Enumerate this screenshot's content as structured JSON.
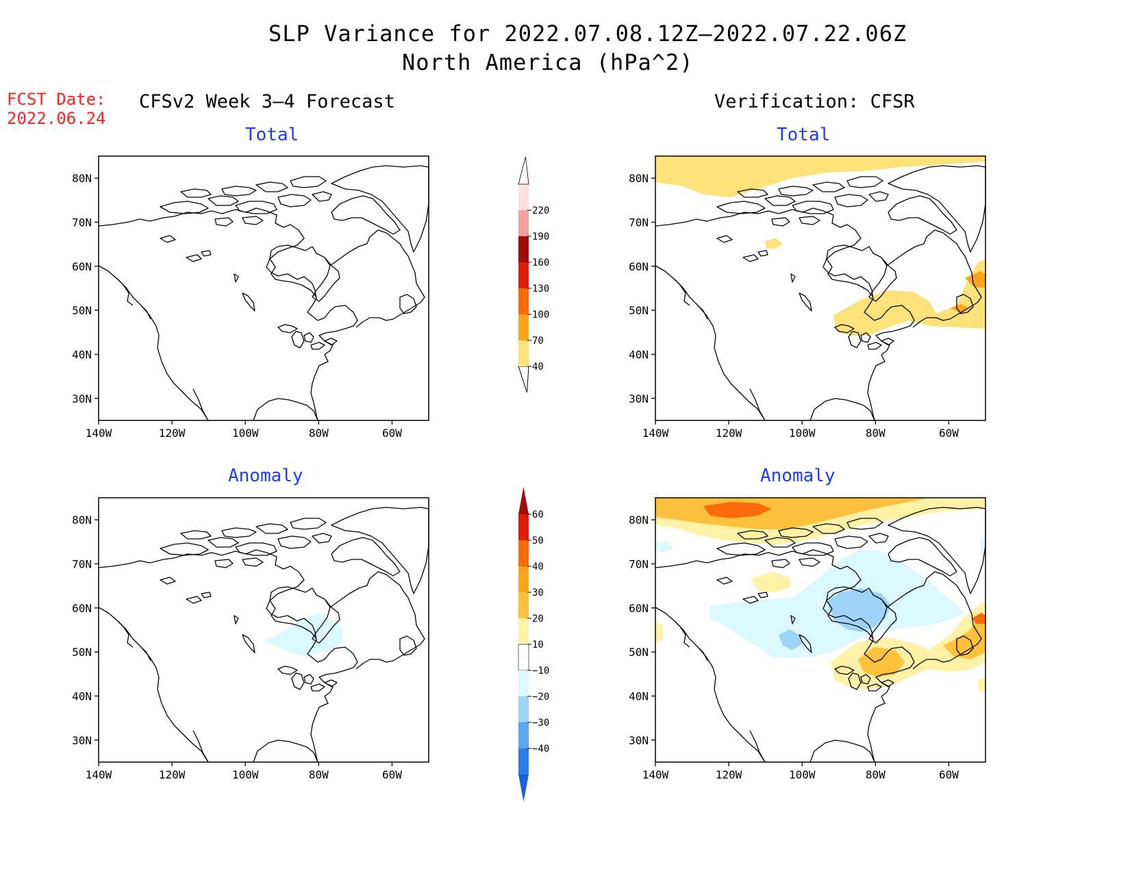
{
  "header": {
    "title_line1": "SLP Variance for 2022.07.08.12Z–2022.07.22.06Z",
    "title_line2": "North America (hPa^2)"
  },
  "fcst": {
    "label": "FCST Date:",
    "date": "2022.06.24"
  },
  "columns": {
    "left": "CFSv2 Week 3–4 Forecast",
    "right": "Verification: CFSR"
  },
  "panels": {
    "top_left": "Total",
    "top_right": "Total",
    "bottom_left": "Anomaly",
    "bottom_right": "Anomaly"
  },
  "axes": {
    "lat_labels": [
      "80N",
      "70N",
      "60N",
      "50N",
      "40N",
      "30N"
    ],
    "lon_labels": [
      "140W",
      "120W",
      "100W",
      "80W",
      "60W"
    ],
    "lat_range": [
      25,
      85
    ],
    "lon_range": [
      -140,
      -50
    ]
  },
  "colorbars": {
    "total": {
      "levels": [
        "40",
        "70",
        "100",
        "130",
        "160",
        "190",
        "220"
      ],
      "colors": [
        "#fde27a",
        "#fba51c",
        "#fd6a0b",
        "#e21c0a",
        "#a00c08",
        "#f2a0a0",
        "#fde0e0"
      ]
    },
    "anomaly": {
      "levels": [
        "60",
        "50",
        "40",
        "30",
        "20",
        "10",
        "−10",
        "−20",
        "−30",
        "−40"
      ],
      "colors_top_down": [
        "#a00c08",
        "#e21c0a",
        "#fd6a0b",
        "#fba51c",
        "#fdc13b",
        "#fff2a6",
        "#ffffff",
        "#dcf8ff",
        "#9dd3f6",
        "#5aa6ef",
        "#2b7de9",
        "#1466d6"
      ]
    }
  },
  "colors": {
    "title_accent": "#1a3cff",
    "fcst_red": "#ff2020"
  }
}
